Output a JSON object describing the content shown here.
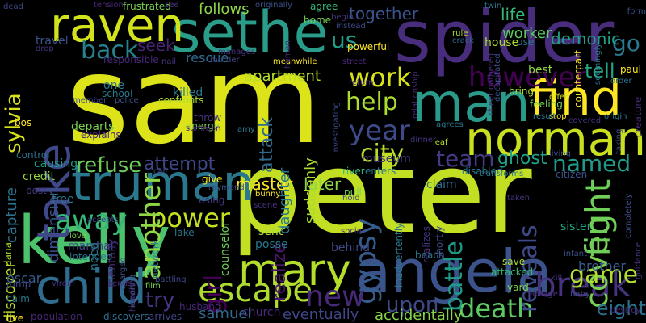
{
  "words": [
    {
      "text": "sam",
      "color": "#dce318"
    },
    {
      "text": "peter",
      "color": "#c2df23"
    },
    {
      "text": "spider",
      "color": "#472d7b"
    },
    {
      "text": "sethe",
      "color": "#2a9d8a"
    },
    {
      "text": "kelly",
      "color": "#4cc26c"
    },
    {
      "text": "truman",
      "color": "#2a788e"
    },
    {
      "text": "angela",
      "color": "#3b528b"
    },
    {
      "text": "man",
      "color": "#2a9b8a"
    },
    {
      "text": "raven",
      "color": "#d2e21b"
    },
    {
      "text": "norman",
      "color": "#c8e020"
    },
    {
      "text": "find",
      "color": "#fde725"
    },
    {
      "text": "child",
      "color": "#2f6c8e"
    },
    {
      "text": "take",
      "color": "#3f4889"
    },
    {
      "text": "mary",
      "color": "#b5de2b"
    },
    {
      "text": "escape",
      "color": "#addc30"
    },
    {
      "text": "death",
      "color": "#5ec962"
    },
    {
      "text": "break",
      "color": "#46337f"
    },
    {
      "text": "coven",
      "color": "#7ad151"
    },
    {
      "text": "fight",
      "color": "#6ece58"
    },
    {
      "text": "game",
      "color": "#b0dd2f"
    },
    {
      "text": "power",
      "color": "#c5e021"
    },
    {
      "text": "another",
      "color": "#8fd744"
    },
    {
      "text": "gypsy",
      "color": "#365c8d"
    },
    {
      "text": "year",
      "color": "#3e4a89"
    },
    {
      "text": "city",
      "color": "#b5de2b"
    },
    {
      "text": "work",
      "color": "#d8e219"
    },
    {
      "text": "help",
      "color": "#addc30"
    },
    {
      "text": "however",
      "color": "#440154"
    },
    {
      "text": "away",
      "color": "#35b779"
    },
    {
      "text": "refuse",
      "color": "#6ece58"
    },
    {
      "text": "new",
      "color": "#482878"
    },
    {
      "text": "upon",
      "color": "#3e4989"
    },
    {
      "text": "try",
      "color": "#46337f"
    },
    {
      "text": "go",
      "color": "#2a788e"
    },
    {
      "text": "us",
      "color": "#1f9e89"
    },
    {
      "text": "back",
      "color": "#25838e"
    },
    {
      "text": "team",
      "color": "#443a83"
    },
    {
      "text": "ghost",
      "color": "#1fa187"
    },
    {
      "text": "named",
      "color": "#1e9b8a"
    },
    {
      "text": "reveals",
      "color": "#3e4989"
    },
    {
      "text": "battle",
      "color": "#1f9a8a"
    },
    {
      "text": "attack",
      "color": "#31688e"
    },
    {
      "text": "attempt",
      "color": "#3f4788"
    },
    {
      "text": "master",
      "color": "#fde725"
    },
    {
      "text": "later",
      "color": "#90d743"
    },
    {
      "text": "girl",
      "color": "#440154"
    },
    {
      "text": "eventually",
      "color": "#3f4788"
    },
    {
      "text": "samuel",
      "color": "#31688e"
    },
    {
      "text": "tell",
      "color": "#22a785"
    },
    {
      "text": "demonic",
      "color": "#1fa088"
    },
    {
      "text": "life",
      "color": "#35b779"
    },
    {
      "text": "together",
      "color": "#3b528b"
    },
    {
      "text": "worker",
      "color": "#5ec962"
    },
    {
      "text": "follows",
      "color": "#8fd744"
    },
    {
      "text": "apartment",
      "color": "#b8de29"
    },
    {
      "text": "rescue",
      "color": "#2f6c8e"
    },
    {
      "text": "seek",
      "color": "#482475"
    },
    {
      "text": "sylvia",
      "color": "#d8e219"
    },
    {
      "text": "dimension",
      "color": "#3b528b"
    },
    {
      "text": "capture",
      "color": "#2c728e"
    },
    {
      "text": "suddenly",
      "color": "#addc30"
    },
    {
      "text": "daughter",
      "color": "#2a788e"
    },
    {
      "text": "realize",
      "color": "#481668"
    },
    {
      "text": "accidentally",
      "color": "#86d549"
    },
    {
      "text": "discover",
      "color": "#b8de29"
    },
    {
      "text": "oscar",
      "color": "#365c8d"
    },
    {
      "text": "marshall",
      "color": "#3e4989"
    },
    {
      "text": "eight",
      "color": "#2d708e"
    },
    {
      "text": "brother",
      "color": "#365c8d"
    },
    {
      "text": "killed",
      "color": "#2a788e"
    },
    {
      "text": "museum",
      "color": "#46337f"
    },
    {
      "text": "departs",
      "color": "#7ad151"
    },
    {
      "text": "energy",
      "color": "#7fd34e"
    },
    {
      "text": "claim",
      "color": "#2c728e"
    },
    {
      "text": "behind",
      "color": "#3e4a89"
    },
    {
      "text": "sister",
      "color": "#22a785"
    },
    {
      "text": "sent",
      "color": "#addc30"
    },
    {
      "text": "posse",
      "color": "#2a788e"
    },
    {
      "text": "counselor",
      "color": "#6ece58"
    },
    {
      "text": "church",
      "color": "#482878"
    },
    {
      "text": "husband",
      "color": "#482878"
    },
    {
      "text": "arrives",
      "color": "#404688"
    },
    {
      "text": "discovers",
      "color": "#2f6c8e"
    },
    {
      "text": "population",
      "color": "#482878"
    },
    {
      "text": "live",
      "color": "#fde725"
    },
    {
      "text": "calm",
      "color": "#2a788e"
    },
    {
      "text": "jump",
      "color": "#3e4989"
    },
    {
      "text": "dana",
      "color": "#addc30"
    },
    {
      "text": "post",
      "color": "#46337f"
    },
    {
      "text": "credit",
      "color": "#8fd744"
    },
    {
      "text": "control",
      "color": "#2c728e"
    },
    {
      "text": "bos",
      "color": "#fde725"
    },
    {
      "text": "causing",
      "color": "#1f9e89"
    },
    {
      "text": "explains",
      "color": "#482878"
    },
    {
      "text": "school",
      "color": "#2a788e"
    },
    {
      "text": "police",
      "color": "#3b528b"
    },
    {
      "text": "confronts",
      "color": "#addc30"
    },
    {
      "text": "one",
      "color": "#2a788e"
    },
    {
      "text": "member",
      "color": "#3e4989"
    },
    {
      "text": "responsible",
      "color": "#482878"
    },
    {
      "text": "travel",
      "color": "#3b528b"
    },
    {
      "text": "drop",
      "color": "#46337f"
    },
    {
      "text": "dead",
      "color": "#3e4989"
    },
    {
      "text": "tension",
      "color": "#482878"
    },
    {
      "text": "frustrated",
      "color": "#7ad151"
    },
    {
      "text": "see",
      "color": "#46337f"
    },
    {
      "text": "originally",
      "color": "#3b528b"
    },
    {
      "text": "agree",
      "color": "#35b779"
    },
    {
      "text": "home",
      "color": "#7ad151"
    },
    {
      "text": "begin",
      "color": "#46337f"
    },
    {
      "text": "instead",
      "color": "#3e4989"
    },
    {
      "text": "powerful",
      "color": "#fde725"
    },
    {
      "text": "twin",
      "color": "#2a788e"
    },
    {
      "text": "form",
      "color": "#3b528b"
    },
    {
      "text": "rule",
      "color": "#addc30"
    },
    {
      "text": "crack",
      "color": "#31688e"
    },
    {
      "text": "house",
      "color": "#addc30"
    },
    {
      "text": "use",
      "color": "#2a788e"
    },
    {
      "text": "paul",
      "color": "#fde725"
    },
    {
      "text": "order",
      "color": "#2c728e"
    },
    {
      "text": "best",
      "color": "#8fd744"
    },
    {
      "text": "feeling",
      "color": "#7ad151"
    },
    {
      "text": "offer",
      "color": "#d8e219"
    },
    {
      "text": "origin",
      "color": "#2a788e"
    },
    {
      "text": "stop",
      "color": "#fde725"
    },
    {
      "text": "covered",
      "color": "#46337f"
    },
    {
      "text": "result",
      "color": "#2a788e"
    },
    {
      "text": "agrees",
      "color": "#2a788e"
    },
    {
      "text": "dinner",
      "color": "#46337f"
    },
    {
      "text": "leaf",
      "color": "#b8de29"
    },
    {
      "text": "living",
      "color": "#3e4989"
    },
    {
      "text": "citizen",
      "color": "#3b528b"
    },
    {
      "text": "taken",
      "color": "#46337f"
    },
    {
      "text": "disabled",
      "color": "#2a788e"
    },
    {
      "text": "river",
      "color": "#35b779"
    },
    {
      "text": "enters",
      "color": "#2a788e"
    },
    {
      "text": "pull",
      "color": "#7ad151"
    },
    {
      "text": "hold",
      "color": "#3e4989"
    },
    {
      "text": "social",
      "color": "#482878"
    },
    {
      "text": "beach",
      "color": "#2a788e"
    },
    {
      "text": "save",
      "color": "#addc30"
    },
    {
      "text": "attacked",
      "color": "#35b779"
    },
    {
      "text": "infant",
      "color": "#3b528b"
    },
    {
      "text": "yard",
      "color": "#7ad151"
    },
    {
      "text": "kill",
      "color": "#46337f"
    },
    {
      "text": "baby",
      "color": "#3e4989"
    },
    {
      "text": "destroy",
      "color": "#482878"
    },
    {
      "text": "film",
      "color": "#7ad151"
    },
    {
      "text": "battling",
      "color": "#3e4989"
    },
    {
      "text": "heavily",
      "color": "#46337f"
    },
    {
      "text": "network",
      "color": "#2a788e"
    },
    {
      "text": "mentally",
      "color": "#482878"
    },
    {
      "text": "intended",
      "color": "#2c728e"
    },
    {
      "text": "need",
      "color": "#2a788e"
    },
    {
      "text": "love",
      "color": "#7ad151"
    },
    {
      "text": "accepts",
      "color": "#3e4989"
    },
    {
      "text": "free",
      "color": "#2a788e"
    },
    {
      "text": "give",
      "color": "#fde725"
    },
    {
      "text": "raymond",
      "color": "#3b528b"
    },
    {
      "text": "using",
      "color": "#46337f"
    },
    {
      "text": "lake",
      "color": "#2a788e"
    },
    {
      "text": "bunny",
      "color": "#fde725"
    },
    {
      "text": "scene",
      "color": "#46337f"
    },
    {
      "text": "call",
      "color": "#3e4989"
    },
    {
      "text": "throw",
      "color": "#46337f"
    },
    {
      "text": "summon",
      "color": "#482878"
    },
    {
      "text": "amy",
      "color": "#2a788e"
    },
    {
      "text": "manages",
      "color": "#46337f"
    },
    {
      "text": "meanwhile",
      "color": "#fde725"
    },
    {
      "text": "murder",
      "color": "#3e4989"
    },
    {
      "text": "nail",
      "color": "#46337f"
    },
    {
      "text": "street",
      "color": "#482878"
    },
    {
      "text": "return",
      "color": "#46337f"
    },
    {
      "text": "bring",
      "color": "#addc30"
    },
    {
      "text": "inadvertently",
      "color": "#2a788e"
    },
    {
      "text": "realizes",
      "color": "#46337f"
    },
    {
      "text": "shortly",
      "color": "#3e4989"
    },
    {
      "text": "ignoring",
      "color": "#3e4989"
    },
    {
      "text": "virgin",
      "color": "#46337f"
    },
    {
      "text": "sends",
      "color": "#482878"
    },
    {
      "text": "charged",
      "color": "#3b528b"
    },
    {
      "text": "damage",
      "color": "#46337f"
    },
    {
      "text": "transforms",
      "color": "#2a788e"
    },
    {
      "text": "investigating",
      "color": "#3e4989"
    },
    {
      "text": "relationship",
      "color": "#482878"
    },
    {
      "text": "gathered",
      "color": "#46337f"
    },
    {
      "text": "decapitated",
      "color": "#3b528b"
    },
    {
      "text": "counterpart",
      "color": "#fde725"
    },
    {
      "text": "seemingly",
      "color": "#2a788e"
    },
    {
      "text": "cheer",
      "color": "#46337f"
    },
    {
      "text": "creature",
      "color": "#482878"
    },
    {
      "text": "taking",
      "color": "#3e4989"
    },
    {
      "text": "completely",
      "color": "#3b528b"
    },
    {
      "text": "guidance",
      "color": "#46337f"
    },
    {
      "text": "human",
      "color": "#482878"
    }
  ]
}
